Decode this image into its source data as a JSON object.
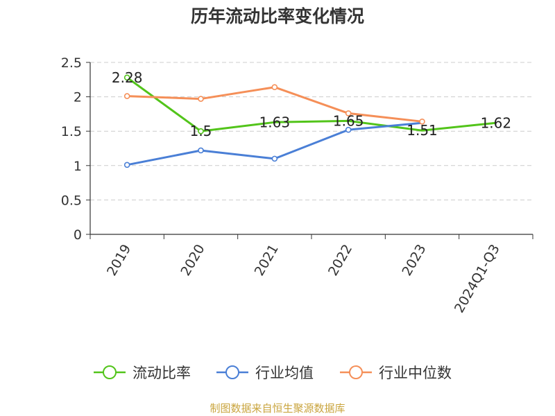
{
  "chart_data": {
    "type": "line",
    "title": "历年流动比率变化情况",
    "categories": [
      "2019",
      "2020",
      "2021",
      "2022",
      "2023",
      "2024Q1-Q3"
    ],
    "series": [
      {
        "name": "流动比率",
        "color": "#52c41a",
        "values": [
          2.28,
          1.5,
          1.63,
          1.65,
          1.51,
          1.62
        ],
        "labels": [
          "2.28",
          "1.5",
          "1.63",
          "1.65",
          "1.51",
          "1.62"
        ],
        "show_labels": true,
        "markers": [
          true,
          true,
          false,
          false,
          false,
          false
        ]
      },
      {
        "name": "行业均值",
        "color": "#4a7fd6",
        "values": [
          1.01,
          1.22,
          1.1,
          1.52,
          1.62,
          null
        ],
        "show_labels": false,
        "markers": [
          true,
          true,
          true,
          true,
          false,
          false
        ]
      },
      {
        "name": "行业中位数",
        "color": "#f58f58",
        "values": [
          2.01,
          1.97,
          2.14,
          1.76,
          1.64,
          null
        ],
        "show_labels": false,
        "markers": [
          true,
          true,
          true,
          true,
          true,
          false
        ]
      }
    ],
    "ylim": [
      0,
      2.5
    ],
    "yticks": [
      "0",
      "0.5",
      "1",
      "1.5",
      "2",
      "2.5"
    ],
    "grid": true,
    "legend_position": "bottom"
  },
  "source_text": "制图数据来自恒生聚源数据库"
}
